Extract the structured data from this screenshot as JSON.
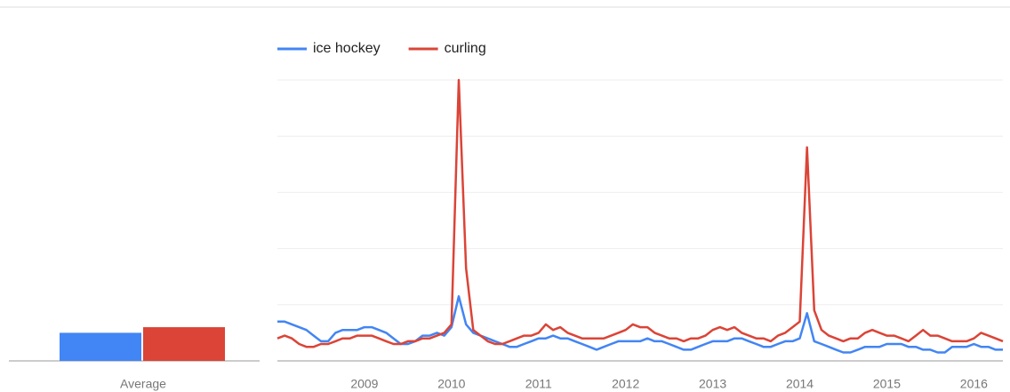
{
  "chart_data": [
    {
      "type": "bar",
      "categories": [
        "Average"
      ],
      "ylim": [
        0,
        100
      ],
      "series": [
        {
          "color": "#4285f4",
          "values": [
            10
          ]
        },
        {
          "color": "#db4437",
          "values": [
            12
          ]
        }
      ]
    },
    {
      "type": "line",
      "ylim": [
        0,
        100
      ],
      "yticks": [
        0,
        20,
        40,
        60,
        80,
        100
      ],
      "grid": true,
      "legend": "top",
      "categories": [
        null,
        null,
        null,
        null,
        null,
        null,
        null,
        null,
        null,
        null,
        null,
        null,
        "2009",
        null,
        null,
        null,
        null,
        null,
        null,
        null,
        null,
        null,
        null,
        null,
        "2010",
        null,
        null,
        null,
        null,
        null,
        null,
        null,
        null,
        null,
        null,
        null,
        "2011",
        null,
        null,
        null,
        null,
        null,
        null,
        null,
        null,
        null,
        null,
        null,
        "2012",
        null,
        null,
        null,
        null,
        null,
        null,
        null,
        null,
        null,
        null,
        null,
        "2013",
        null,
        null,
        null,
        null,
        null,
        null,
        null,
        null,
        null,
        null,
        null,
        "2014",
        null,
        null,
        null,
        null,
        null,
        null,
        null,
        null,
        null,
        null,
        null,
        "2015",
        null,
        null,
        null,
        null,
        null,
        null,
        null,
        null,
        null,
        null,
        null,
        "2016",
        null,
        null,
        null,
        null
      ],
      "series": [
        {
          "name": "ice hockey",
          "color": "#4285f4",
          "values": [
            14,
            14,
            13,
            12,
            11,
            9,
            7,
            7,
            10,
            11,
            11,
            11,
            12,
            12,
            11,
            10,
            8,
            6,
            6,
            7,
            9,
            9,
            10,
            9,
            12,
            23,
            13,
            10,
            9,
            8,
            7,
            6,
            5,
            5,
            6,
            7,
            8,
            8,
            9,
            8,
            8,
            7,
            6,
            5,
            4,
            5,
            6,
            7,
            7,
            7,
            7,
            8,
            7,
            7,
            6,
            5,
            4,
            4,
            5,
            6,
            7,
            7,
            7,
            8,
            8,
            7,
            6,
            5,
            5,
            6,
            7,
            7,
            8,
            17,
            7,
            6,
            5,
            4,
            3,
            3,
            4,
            5,
            5,
            5,
            6,
            6,
            6,
            5,
            5,
            4,
            4,
            3,
            3,
            5,
            5,
            5,
            6,
            5,
            5,
            4,
            4
          ]
        },
        {
          "name": "curling",
          "color": "#db4437",
          "values": [
            8,
            9,
            8,
            6,
            5,
            5,
            6,
            6,
            7,
            8,
            8,
            9,
            9,
            9,
            8,
            7,
            6,
            6,
            7,
            7,
            8,
            8,
            9,
            10,
            13,
            100,
            33,
            11,
            9,
            7,
            6,
            6,
            7,
            8,
            9,
            9,
            10,
            13,
            11,
            12,
            10,
            9,
            8,
            8,
            8,
            8,
            9,
            10,
            11,
            13,
            12,
            12,
            10,
            9,
            8,
            8,
            7,
            8,
            8,
            9,
            11,
            12,
            11,
            12,
            10,
            9,
            8,
            8,
            7,
            9,
            10,
            12,
            14,
            76,
            18,
            11,
            9,
            8,
            7,
            8,
            8,
            10,
            11,
            10,
            9,
            9,
            8,
            7,
            9,
            11,
            9,
            9,
            8,
            7,
            7,
            7,
            8,
            10,
            9,
            8,
            7
          ]
        }
      ]
    }
  ]
}
